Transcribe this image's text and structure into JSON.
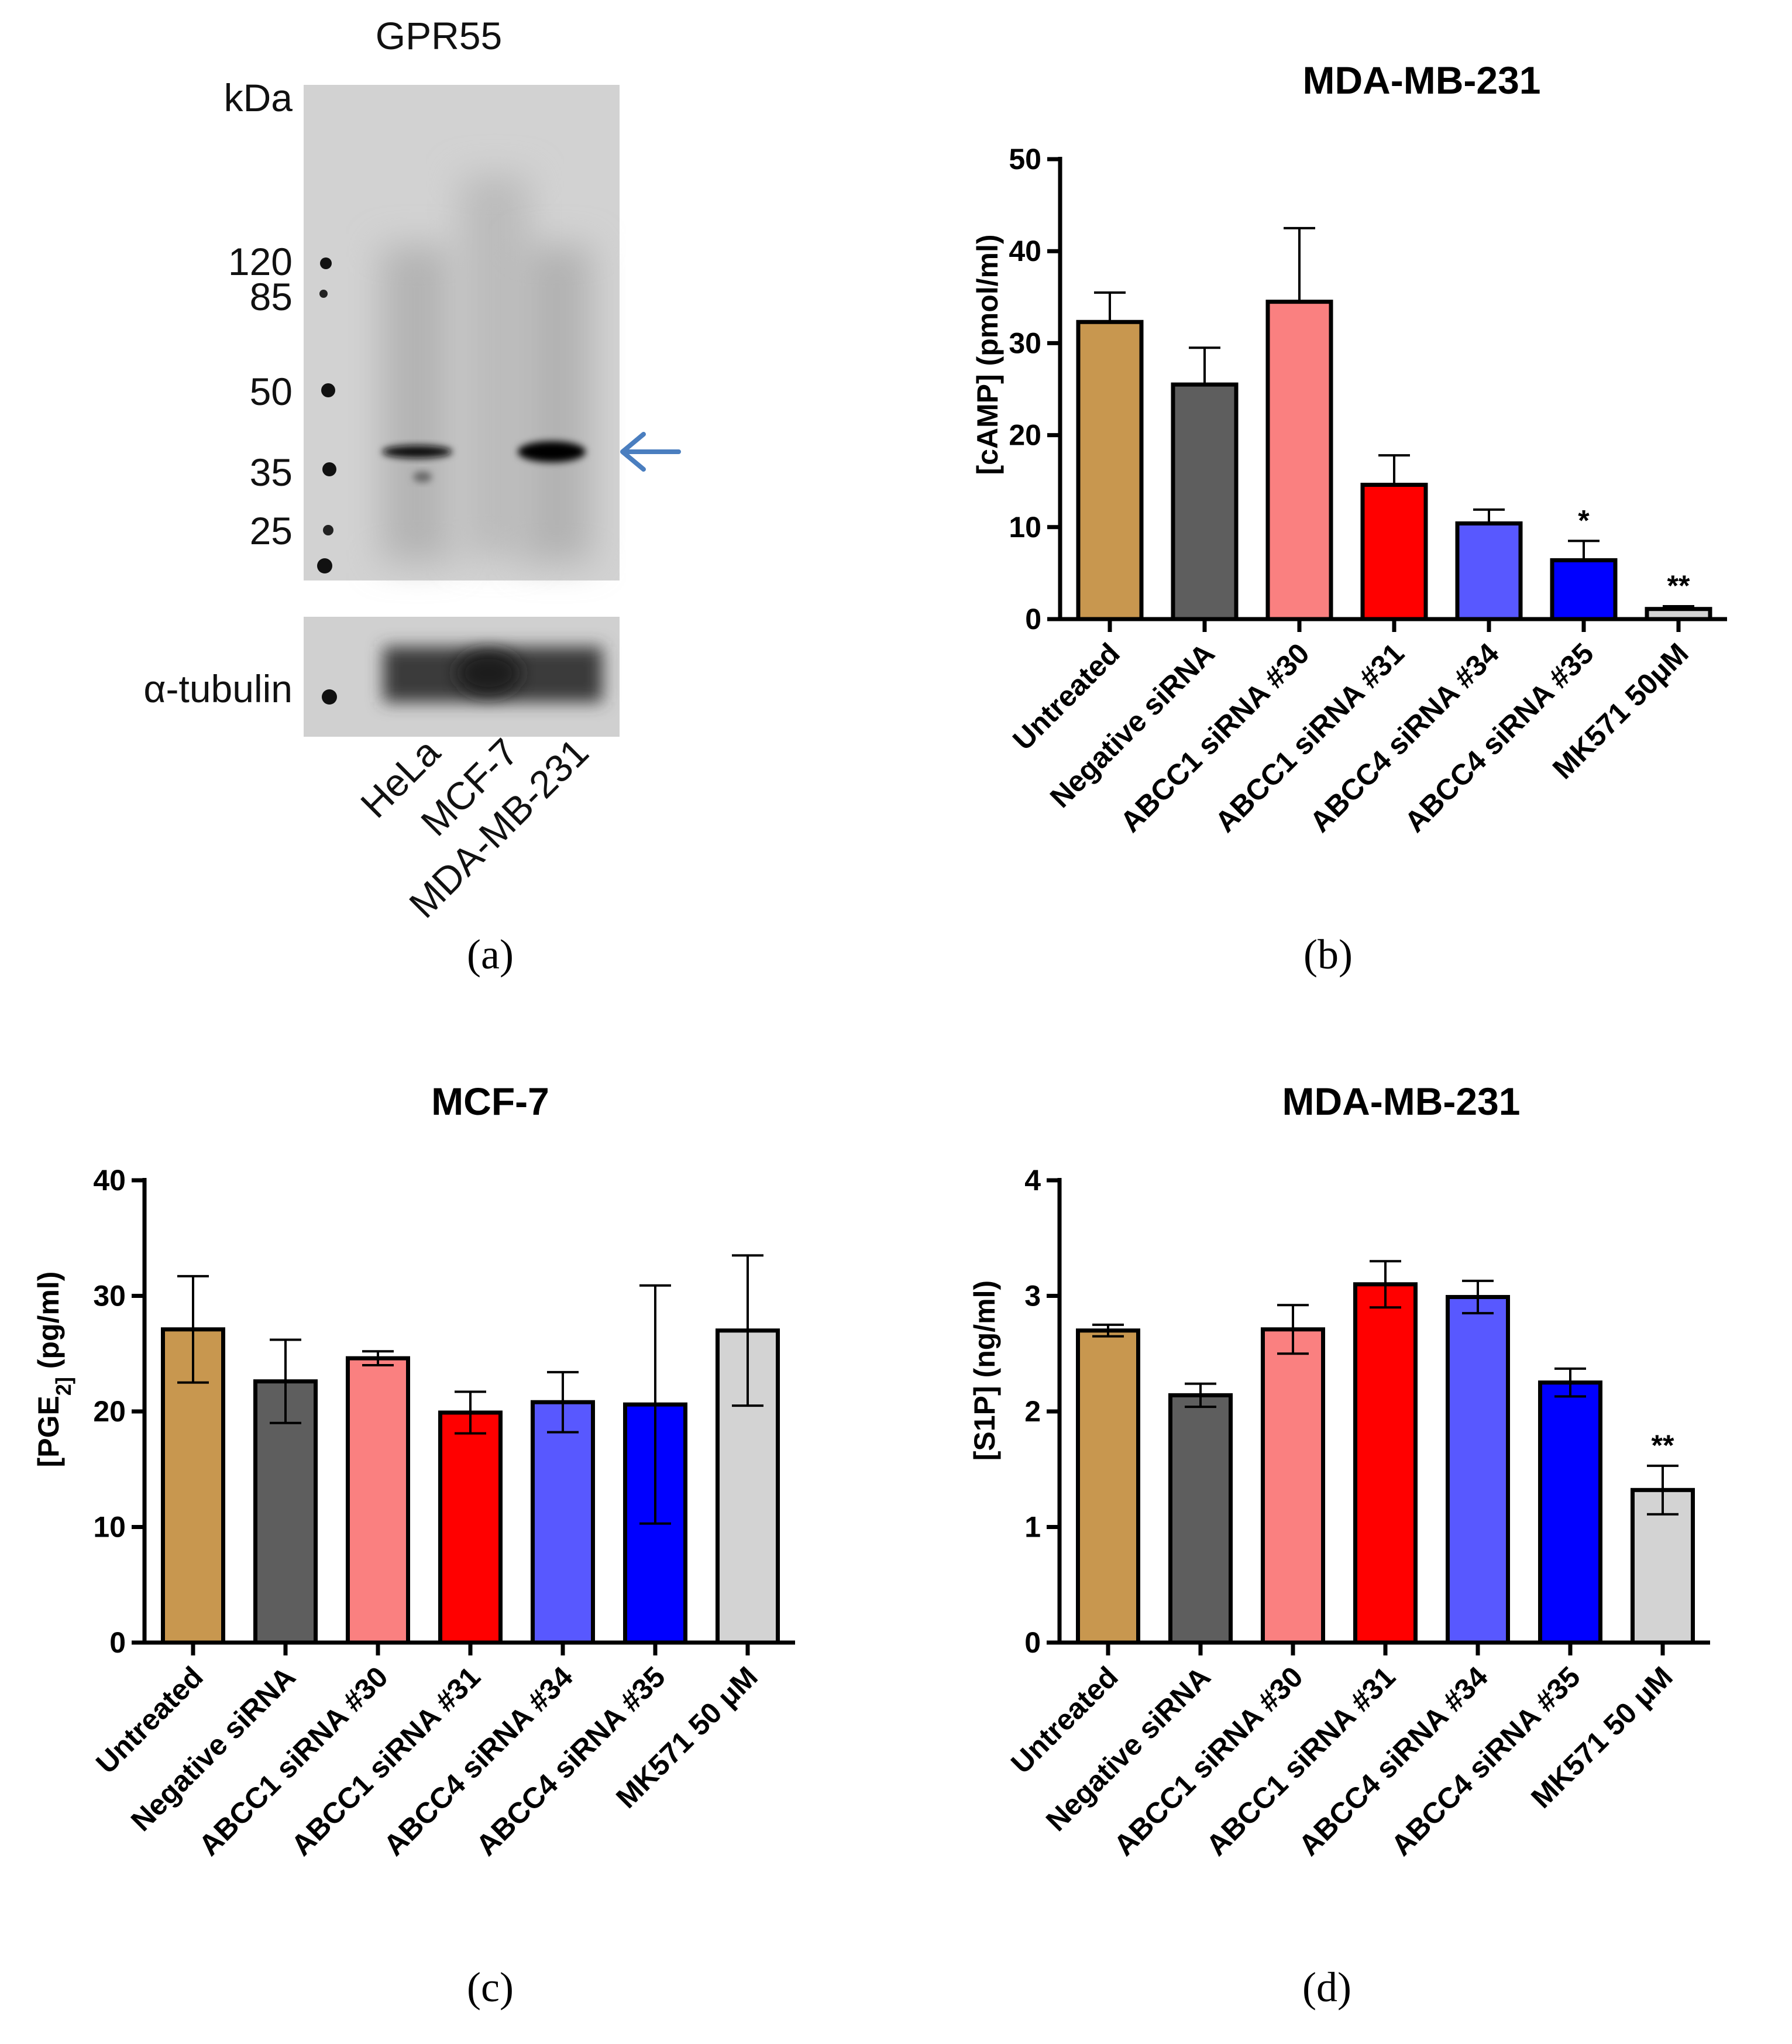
{
  "figure": {
    "panel_labels": [
      "(a)",
      "(b)",
      "(c)",
      "(d)"
    ]
  },
  "blot": {
    "title": "GPR55",
    "kda_label": "kDa",
    "markers": [
      "120",
      "85",
      "50",
      "35",
      "25"
    ],
    "loading_control": "α-tubulin",
    "lanes": [
      "HeLa",
      "MCF-7",
      "MDA-MB-231"
    ],
    "arrow_color": "#4a7ebf"
  },
  "chart_data": [
    {
      "type": "bar",
      "panel": "(b)",
      "title": "MDA-MB-231",
      "ylabel_parts": [
        "[cAMP] (pmol/ml)"
      ],
      "categories": [
        "Untreated",
        "Negative siRNA",
        "ABCC1 siRNA #30",
        "ABCC1 siRNA #31",
        "ABCC4 siRNA #34",
        "ABCC4 siRNA #35",
        "MK571 50μM"
      ],
      "values": [
        32.3,
        25.5,
        34.5,
        14.6,
        10.4,
        6.4,
        1.1
      ],
      "errors": [
        3.2,
        4.0,
        8.0,
        3.2,
        1.5,
        2.1,
        0.3
      ],
      "error_style": "upper",
      "significance": [
        "",
        "",
        "",
        "",
        "",
        "*",
        "**"
      ],
      "ylim": [
        0,
        50
      ],
      "yticks": [
        "0",
        "10",
        "20",
        "30",
        "40",
        "50"
      ],
      "colors": [
        "#c8974f",
        "#5e5e5e",
        "#fa8080",
        "#ff0000",
        "#5858ff",
        "#0000ff",
        "#d3d3d3"
      ]
    },
    {
      "type": "bar",
      "panel": "(c)",
      "title": "MCF-7",
      "ylabel_parts": [
        "[PGE",
        "2]",
        " (pg/ml)"
      ],
      "categories": [
        "Untreated",
        "Negative siRNA",
        "ABCC1 siRNA #30",
        "ABCC1 siRNA #31",
        "ABCC4 siRNA #34",
        "ABCC4 siRNA #35",
        "MK571 50 μM"
      ],
      "values": [
        27.1,
        22.6,
        24.6,
        19.9,
        20.8,
        20.6,
        27.0
      ],
      "errors": [
        4.6,
        3.6,
        0.6,
        1.8,
        2.6,
        10.3,
        6.5
      ],
      "error_style": "both",
      "significance": [
        "",
        "",
        "",
        "",
        "",
        "",
        ""
      ],
      "ylim": [
        0,
        40
      ],
      "yticks": [
        "0",
        "10",
        "20",
        "30",
        "40"
      ],
      "colors": [
        "#c8974f",
        "#5e5e5e",
        "#fa8080",
        "#ff0000",
        "#5858ff",
        "#0000ff",
        "#d3d3d3"
      ]
    },
    {
      "type": "bar",
      "panel": "(d)",
      "title": "MDA-MB-231",
      "ylabel_parts": [
        "[S1P] (ng/ml)"
      ],
      "categories": [
        "Untreated",
        "Negative siRNA",
        "ABCC1 siRNA #30",
        "ABCC1 siRNA #31",
        "ABCC4 siRNA #34",
        "ABCC4 siRNA #35",
        "MK571 50 μM"
      ],
      "values": [
        2.7,
        2.14,
        2.71,
        3.1,
        2.99,
        2.25,
        1.32
      ],
      "errors": [
        0.05,
        0.1,
        0.21,
        0.2,
        0.14,
        0.12,
        0.21
      ],
      "error_style": "both",
      "significance": [
        "",
        "",
        "",
        "",
        "",
        "",
        "**"
      ],
      "ylim": [
        0,
        4
      ],
      "yticks": [
        "0",
        "1",
        "2",
        "3",
        "4"
      ],
      "colors": [
        "#c8974f",
        "#5e5e5e",
        "#fa8080",
        "#ff0000",
        "#5858ff",
        "#0000ff",
        "#d3d3d3"
      ]
    }
  ]
}
